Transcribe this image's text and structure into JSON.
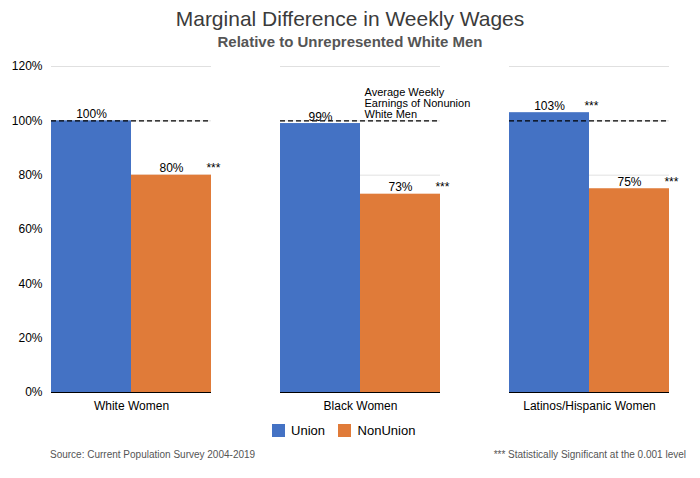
{
  "chart_data": {
    "type": "bar",
    "title": "Marginal Difference in Weekly Wages",
    "subtitle": "Relative to Unrepresented White Men",
    "categories": [
      "White Women",
      "Black Women",
      "Latinos/Hispanic Women"
    ],
    "series": [
      {
        "name": "Union",
        "color": "#4472C4",
        "values": [
          100,
          99,
          103
        ],
        "value_labels": [
          "100%",
          "99%",
          "103%"
        ],
        "significance": [
          null,
          null,
          "***"
        ]
      },
      {
        "name": "NonUnion",
        "color": "#E07B39",
        "values": [
          80,
          73,
          75
        ],
        "value_labels": [
          "80%",
          "73%",
          "75%"
        ],
        "significance": [
          "***",
          "***",
          "***"
        ]
      }
    ],
    "ylim": [
      0,
      120
    ],
    "yticks": [
      {
        "value": 0,
        "label": "0%"
      },
      {
        "value": 20,
        "label": "20%"
      },
      {
        "value": 40,
        "label": "40%"
      },
      {
        "value": 60,
        "label": "60%"
      },
      {
        "value": 80,
        "label": "80%"
      },
      {
        "value": 100,
        "label": "100%"
      },
      {
        "value": 120,
        "label": "120%"
      }
    ],
    "grid": true,
    "data_labels": true,
    "legend": "bottom",
    "annotation": {
      "text": "Average Weekly\nEarnings of Nonunion\nWhite Men",
      "y": 100,
      "line_style": "dashed"
    },
    "source": "Source: Current Population Survey 2004-2019",
    "note": "*** Statistically Significant at the 0.001 level"
  }
}
